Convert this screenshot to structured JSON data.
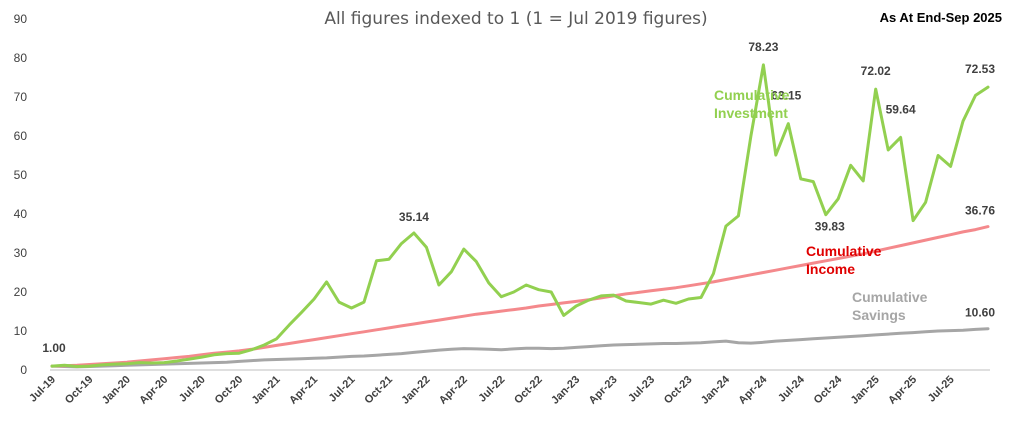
{
  "chart_data": {
    "type": "line",
    "title": "All figures indexed to 1 (1 = Jul 2019 figures)",
    "note": "As At End-Sep 2025",
    "ylim": [
      0,
      90
    ],
    "yticks": [
      0,
      10,
      20,
      30,
      40,
      50,
      60,
      70,
      80,
      90
    ],
    "grid": false,
    "x_tick_labels": [
      "Jul-19",
      "Oct-19",
      "Jan-20",
      "Apr-20",
      "Jul-20",
      "Oct-20",
      "Jan-21",
      "Apr-21",
      "Jul-21",
      "Oct-21",
      "Jan-22",
      "Apr-22",
      "Jul-22",
      "Oct-22",
      "Jan-23",
      "Apr-23",
      "Jul-23",
      "Oct-23",
      "Jan-24",
      "Apr-24",
      "Jul-24",
      "Oct-24",
      "Jan-25",
      "Apr-25",
      "Jul-25"
    ],
    "series": [
      {
        "name": "Cumulative Investment",
        "label_lines": [
          "Cumulative",
          "Investment"
        ],
        "color": "#92d050",
        "values": [
          1.0,
          1.2,
          0.9,
          1.0,
          1.3,
          1.5,
          1.6,
          1.9,
          1.8,
          1.9,
          2.3,
          2.8,
          3.3,
          3.9,
          4.2,
          4.3,
          5.2,
          6.4,
          8.0,
          11.5,
          14.8,
          18.2,
          22.6,
          17.4,
          15.9,
          17.4,
          28.0,
          28.4,
          32.4,
          35.14,
          31.5,
          21.8,
          25.2,
          31.0,
          27.8,
          22.3,
          18.8,
          20.0,
          21.8,
          20.6,
          20.0,
          14.0,
          16.4,
          17.9,
          19.0,
          19.2,
          17.7,
          17.3,
          16.9,
          17.9,
          17.1,
          18.2,
          18.6,
          24.7,
          36.9,
          39.5,
          60.0,
          78.23,
          55.1,
          63.15,
          49.0,
          48.3,
          39.83,
          43.9,
          52.5,
          48.5,
          72.02,
          56.4,
          59.64,
          38.3,
          43.0,
          55.0,
          52.2,
          63.8,
          70.4,
          72.53
        ]
      },
      {
        "name": "Cumulative Income",
        "label_lines": [
          "Cumulative",
          "Income"
        ],
        "color": "#f4898c",
        "values": [
          1.0,
          1.1,
          1.2,
          1.4,
          1.6,
          1.8,
          2.0,
          2.3,
          2.6,
          2.9,
          3.2,
          3.5,
          3.9,
          4.3,
          4.6,
          4.9,
          5.3,
          5.8,
          6.3,
          6.8,
          7.3,
          7.8,
          8.3,
          8.8,
          9.3,
          9.8,
          10.3,
          10.8,
          11.3,
          11.8,
          12.3,
          12.8,
          13.3,
          13.8,
          14.3,
          14.7,
          15.1,
          15.5,
          15.9,
          16.4,
          16.8,
          17.2,
          17.6,
          18.0,
          18.5,
          19.0,
          19.5,
          19.9,
          20.3,
          20.7,
          21.1,
          21.6,
          22.1,
          22.6,
          23.2,
          23.8,
          24.4,
          25.0,
          25.6,
          26.2,
          26.8,
          27.4,
          28.0,
          28.6,
          29.2,
          29.8,
          30.5,
          31.2,
          31.9,
          32.6,
          33.3,
          34.0,
          34.7,
          35.4,
          36.0,
          36.76
        ]
      },
      {
        "name": "Cumulative Savings",
        "label_lines": [
          "Cumulative",
          "Savings"
        ],
        "color": "#a6a6a6",
        "values": [
          1.0,
          0.9,
          0.8,
          0.9,
          1.0,
          1.1,
          1.2,
          1.3,
          1.4,
          1.5,
          1.6,
          1.7,
          1.8,
          1.9,
          2.0,
          2.2,
          2.4,
          2.6,
          2.7,
          2.8,
          2.9,
          3.0,
          3.1,
          3.3,
          3.5,
          3.6,
          3.8,
          4.0,
          4.2,
          4.5,
          4.8,
          5.1,
          5.3,
          5.5,
          5.4,
          5.3,
          5.2,
          5.4,
          5.6,
          5.6,
          5.5,
          5.6,
          5.8,
          6.0,
          6.2,
          6.4,
          6.5,
          6.6,
          6.7,
          6.8,
          6.8,
          6.9,
          7.0,
          7.2,
          7.4,
          7.0,
          6.9,
          7.1,
          7.4,
          7.6,
          7.8,
          8.0,
          8.2,
          8.4,
          8.6,
          8.8,
          9.0,
          9.2,
          9.4,
          9.6,
          9.8,
          10.0,
          10.1,
          10.2,
          10.4,
          10.6
        ]
      }
    ],
    "data_labels": [
      {
        "series": 0,
        "index": 0,
        "text": "1.00"
      },
      {
        "series": 0,
        "index": 29,
        "text": "35.14"
      },
      {
        "series": 0,
        "index": 57,
        "text": "78.23"
      },
      {
        "series": 0,
        "index": 59,
        "text": "63.15"
      },
      {
        "series": 0,
        "index": 62,
        "text": "39.83"
      },
      {
        "series": 0,
        "index": 66,
        "text": "72.02"
      },
      {
        "series": 0,
        "index": 68,
        "text": "59.64"
      },
      {
        "series": 0,
        "index": 75,
        "text": "72.53"
      },
      {
        "series": 1,
        "index": 75,
        "text": "36.76"
      },
      {
        "series": 2,
        "index": 75,
        "text": "10.60"
      }
    ]
  }
}
